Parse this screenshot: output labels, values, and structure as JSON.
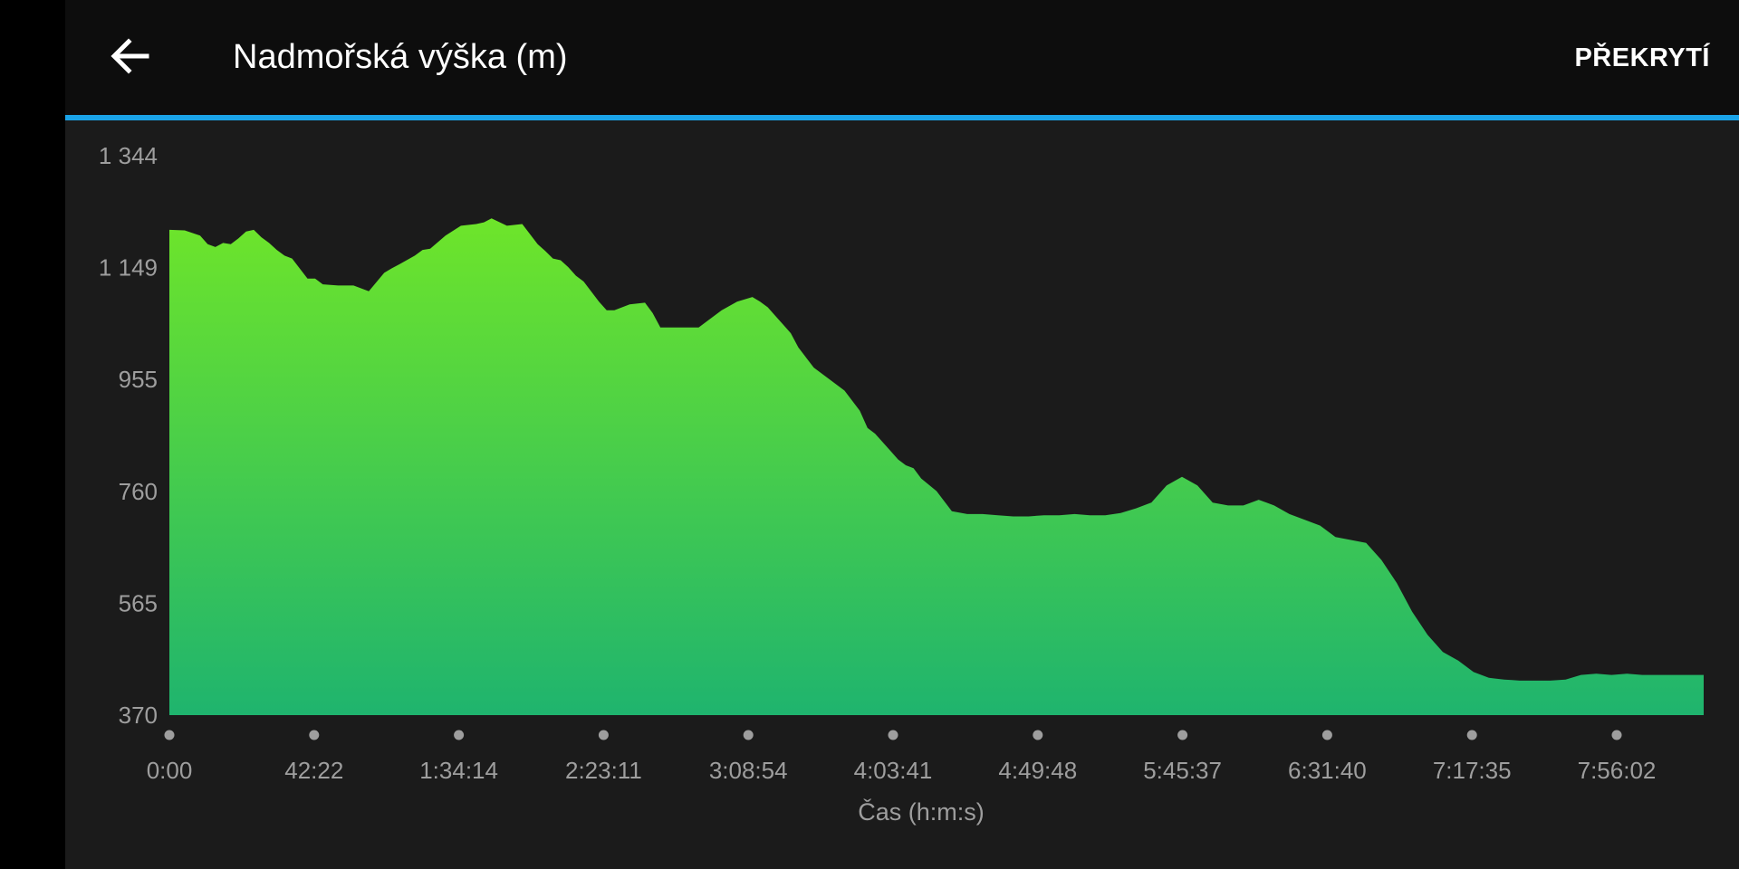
{
  "header": {
    "title": "Nadmořská výška (m)",
    "overlay_label": "PŘEKRYTÍ",
    "back_icon": "arrow-left-icon"
  },
  "colors": {
    "fill_top": "#6ee52a",
    "fill_bottom": "#1fb46e",
    "accent_line": "#1aa3e8",
    "axis_text": "#9e9e9e"
  },
  "chart_data": {
    "type": "area",
    "xlabel": "Čas (h:m:s)",
    "ylabel": "",
    "yticks": [
      "1 344",
      "1 149",
      "955",
      "760",
      "565",
      "370"
    ],
    "ylim": [
      370,
      1344
    ],
    "xticks": [
      "0:00",
      "42:22",
      "1:34:14",
      "2:23:11",
      "3:08:54",
      "4:03:41",
      "4:49:48",
      "5:45:37",
      "6:31:40",
      "7:17:35",
      "7:56:02"
    ],
    "x_progress": [
      0,
      0.01,
      0.02,
      0.025,
      0.03,
      0.035,
      0.04,
      0.045,
      0.05,
      0.055,
      0.06,
      0.065,
      0.07,
      0.075,
      0.08,
      0.09,
      0.095,
      0.1,
      0.11,
      0.115,
      0.12,
      0.13,
      0.14,
      0.145,
      0.15,
      0.16,
      0.165,
      0.17,
      0.18,
      0.19,
      0.2,
      0.205,
      0.21,
      0.22,
      0.23,
      0.24,
      0.245,
      0.25,
      0.255,
      0.26,
      0.265,
      0.27,
      0.28,
      0.285,
      0.29,
      0.3,
      0.31,
      0.315,
      0.32,
      0.33,
      0.34,
      0.345,
      0.35,
      0.36,
      0.37,
      0.38,
      0.385,
      0.39,
      0.395,
      0.4,
      0.405,
      0.41,
      0.42,
      0.43,
      0.44,
      0.45,
      0.455,
      0.46,
      0.47,
      0.475,
      0.48,
      0.485,
      0.49,
      0.5,
      0.51,
      0.52,
      0.53,
      0.54,
      0.55,
      0.56,
      0.57,
      0.58,
      0.59,
      0.6,
      0.61,
      0.62,
      0.63,
      0.64,
      0.65,
      0.66,
      0.67,
      0.68,
      0.69,
      0.7,
      0.71,
      0.72,
      0.73,
      0.74,
      0.75,
      0.76,
      0.77,
      0.78,
      0.79,
      0.8,
      0.81,
      0.82,
      0.83,
      0.84,
      0.85,
      0.86,
      0.87,
      0.875,
      0.88,
      0.89,
      0.9,
      0.91,
      0.92,
      0.93,
      0.94,
      0.95,
      0.96,
      0.97,
      0.98,
      0.99,
      1.0
    ],
    "y": [
      1215,
      1214,
      1205,
      1190,
      1185,
      1192,
      1190,
      1200,
      1212,
      1215,
      1202,
      1192,
      1180,
      1170,
      1165,
      1130,
      1130,
      1120,
      1118,
      1118,
      1118,
      1108,
      1140,
      1148,
      1155,
      1170,
      1180,
      1182,
      1205,
      1222,
      1225,
      1228,
      1235,
      1222,
      1225,
      1190,
      1178,
      1165,
      1162,
      1150,
      1135,
      1125,
      1090,
      1075,
      1075,
      1085,
      1088,
      1070,
      1045,
      1045,
      1045,
      1045,
      1055,
      1075,
      1090,
      1098,
      1090,
      1080,
      1065,
      1050,
      1035,
      1010,
      975,
      955,
      935,
      900,
      870,
      860,
      830,
      815,
      805,
      800,
      782,
      760,
      725,
      720,
      720,
      718,
      716,
      716,
      718,
      718,
      720,
      718,
      718,
      722,
      730,
      740,
      770,
      785,
      770,
      740,
      735,
      735,
      745,
      735,
      720,
      710,
      700,
      680,
      675,
      670,
      640,
      600,
      550,
      510,
      480,
      465,
      445,
      435,
      432,
      431,
      430,
      430,
      430,
      432,
      440,
      442,
      440,
      442,
      440,
      440,
      440,
      440,
      440
    ]
  }
}
